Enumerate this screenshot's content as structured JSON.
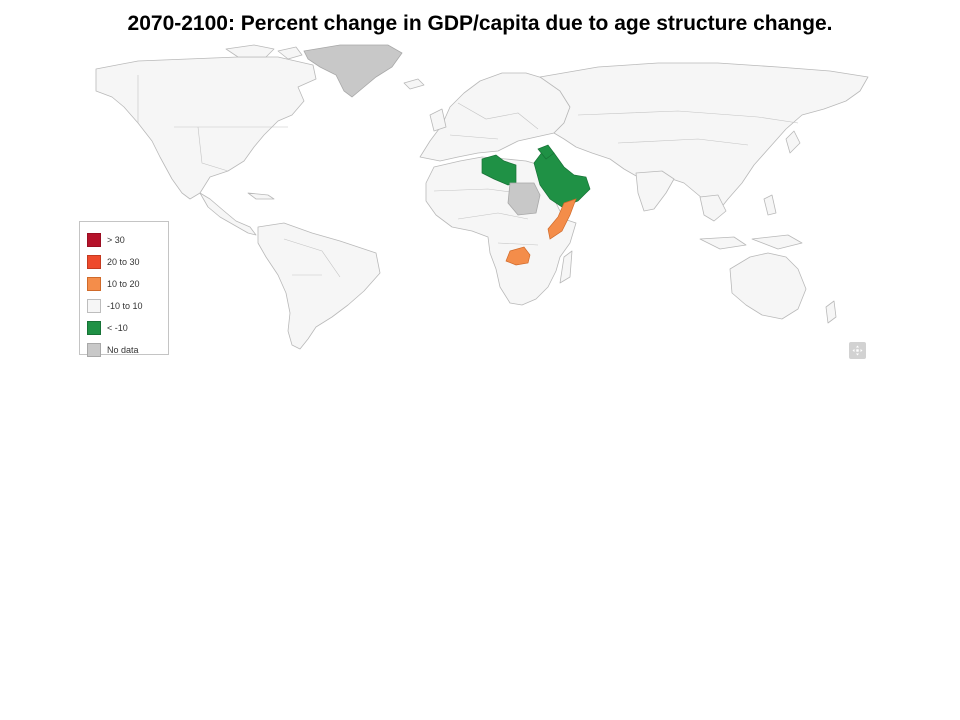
{
  "title": "2070-2100:  Percent change in GDP/capita due to age structure change.",
  "colors": {
    "over_30": "#b5122a",
    "20_to_30": "#ee4a2c",
    "10_to_20": "#f48d4a",
    "neutral": "#f6f6f6",
    "under_minus_10": "#1f9145",
    "no_data": "#c8c8c8"
  },
  "legend": [
    {
      "label": "> 30",
      "color": "#b5122a"
    },
    {
      "label": "20 to 30",
      "color": "#ee4a2c"
    },
    {
      "label": "10 to 20",
      "color": "#f48d4a"
    },
    {
      "label": "-10 to 10",
      "color": "#f6f6f6"
    },
    {
      "label": "< -10",
      "color": "#1f9145"
    },
    {
      "label": "No data",
      "color": "#c8c8c8"
    }
  ],
  "map": {
    "below_minus_10": [
      "Libya",
      "Saudi Arabia",
      "Iraq",
      "Oman",
      "Yemen",
      "Kuwait",
      "UAE",
      "Qatar"
    ],
    "ten_to_twenty": [
      "Somalia",
      "Zambia",
      "Malawi"
    ],
    "no_data": [
      "Greenland",
      "Sudan"
    ]
  },
  "controls": {
    "reset_icon": "zoom-reset-icon"
  }
}
